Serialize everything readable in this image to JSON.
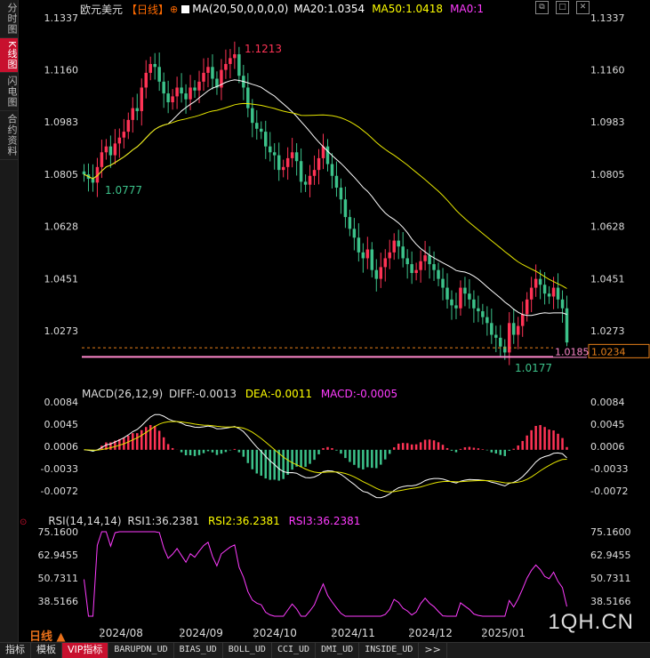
{
  "sidebar": {
    "tabs": [
      {
        "label": "分时图",
        "active": false
      },
      {
        "label": "K线图",
        "active": true
      },
      {
        "label": "闪电图",
        "active": false
      },
      {
        "label": "合约资料",
        "active": false
      }
    ]
  },
  "header": {
    "symbol": "欧元美元",
    "period_tag": "【日线】",
    "ma_label": "MA(20,50,0,0,0,0)",
    "ma20": "MA20:1.0354",
    "ma50": "MA50:1.0418",
    "ma0": "MA0:1",
    "colors": {
      "symbol": "#dddddd",
      "period": "#ff6a00",
      "ma20": "#ffffff",
      "ma50": "#ffff00",
      "ma0": "#ff3cff"
    }
  },
  "window_buttons": [
    "restore-icon",
    "maximize-icon",
    "close-icon"
  ],
  "price_axis": {
    "left": [
      "1.1337",
      "1.1160",
      "1.0983",
      "1.0805",
      "1.0628",
      "1.0451",
      "1.0273"
    ],
    "right": [
      "1.1337",
      "1.1160",
      "1.0983",
      "1.0805",
      "1.0628",
      "1.0451",
      "1.0273"
    ]
  },
  "annotations": {
    "high": "1.1213",
    "low_left": "1.0777",
    "low_right": "1.0177",
    "level_line": "1.0185",
    "last_price": "1.0234"
  },
  "macd": {
    "header": "MACD(26,12,9)",
    "diff": "DIFF:-0.0013",
    "dea": "DEA:-0.0011",
    "macd": "MACD:-0.0005",
    "axis": [
      "0.0084",
      "0.0045",
      "0.0006",
      "-0.0033",
      "-0.0072"
    ]
  },
  "rsi": {
    "header": "RSI(14,14,14)",
    "rsi1": "RSI1:36.2381",
    "rsi2": "RSI2:36.2381",
    "rsi3": "RSI3:36.2381",
    "axis": [
      "75.1600",
      "62.9455",
      "50.7311",
      "38.5166"
    ]
  },
  "time_axis": [
    "2024/08",
    "2024/09",
    "2024/10",
    "2024/11",
    "2024/12",
    "2025/01"
  ],
  "period_button": "日线",
  "bottom_tabs": [
    "指标",
    "模板",
    "VIP指标",
    "BARUPDN_UD",
    "BIAS_UD",
    "BOLL_UD",
    "CCI_UD",
    "DMI_UD",
    "INSIDE_UD",
    ">>"
  ],
  "watermark": "1QH.CN",
  "chart_data": {
    "type": "candlestick",
    "title": "欧元美元 日线",
    "price_range": [
      1.0177,
      1.1337
    ],
    "key_prices": {
      "high": 1.1213,
      "low": 1.0177,
      "first_low": 1.0777,
      "last": 1.0234
    },
    "ma20_last": 1.0354,
    "ma50_last": 1.0418,
    "macd_last": {
      "diff": -0.0013,
      "dea": -0.0011,
      "macd": -0.0005
    },
    "rsi_last": 36.2381,
    "rsi_range": [
      38.5166,
      75.16
    ],
    "close_series": [
      1.0805,
      1.079,
      1.0777,
      1.083,
      1.088,
      1.09,
      1.087,
      1.091,
      1.093,
      1.095,
      1.099,
      1.103,
      1.102,
      1.11,
      1.115,
      1.118,
      1.117,
      1.112,
      1.108,
      1.105,
      1.107,
      1.11,
      1.108,
      1.106,
      1.11,
      1.109,
      1.112,
      1.115,
      1.117,
      1.113,
      1.11,
      1.116,
      1.118,
      1.12,
      1.1213,
      1.114,
      1.11,
      1.103,
      1.098,
      1.096,
      1.095,
      1.09,
      1.088,
      1.087,
      1.082,
      1.083,
      1.086,
      1.088,
      1.085,
      1.078,
      1.077,
      1.08,
      1.082,
      1.086,
      1.09,
      1.084,
      1.08,
      1.076,
      1.072,
      1.066,
      1.062,
      1.059,
      1.054,
      1.052,
      1.055,
      1.048,
      1.045,
      1.049,
      1.052,
      1.054,
      1.058,
      1.056,
      1.052,
      1.05,
      1.047,
      1.048,
      1.051,
      1.053,
      1.05,
      1.048,
      1.045,
      1.042,
      1.038,
      1.036,
      1.035,
      1.042,
      1.04,
      1.038,
      1.035,
      1.034,
      1.032,
      1.03,
      1.026,
      1.025,
      1.022,
      1.02,
      1.03,
      1.026,
      1.029,
      1.033,
      1.038,
      1.042,
      1.045,
      1.043,
      1.04,
      1.039,
      1.042,
      1.038,
      1.035,
      1.0234
    ]
  }
}
